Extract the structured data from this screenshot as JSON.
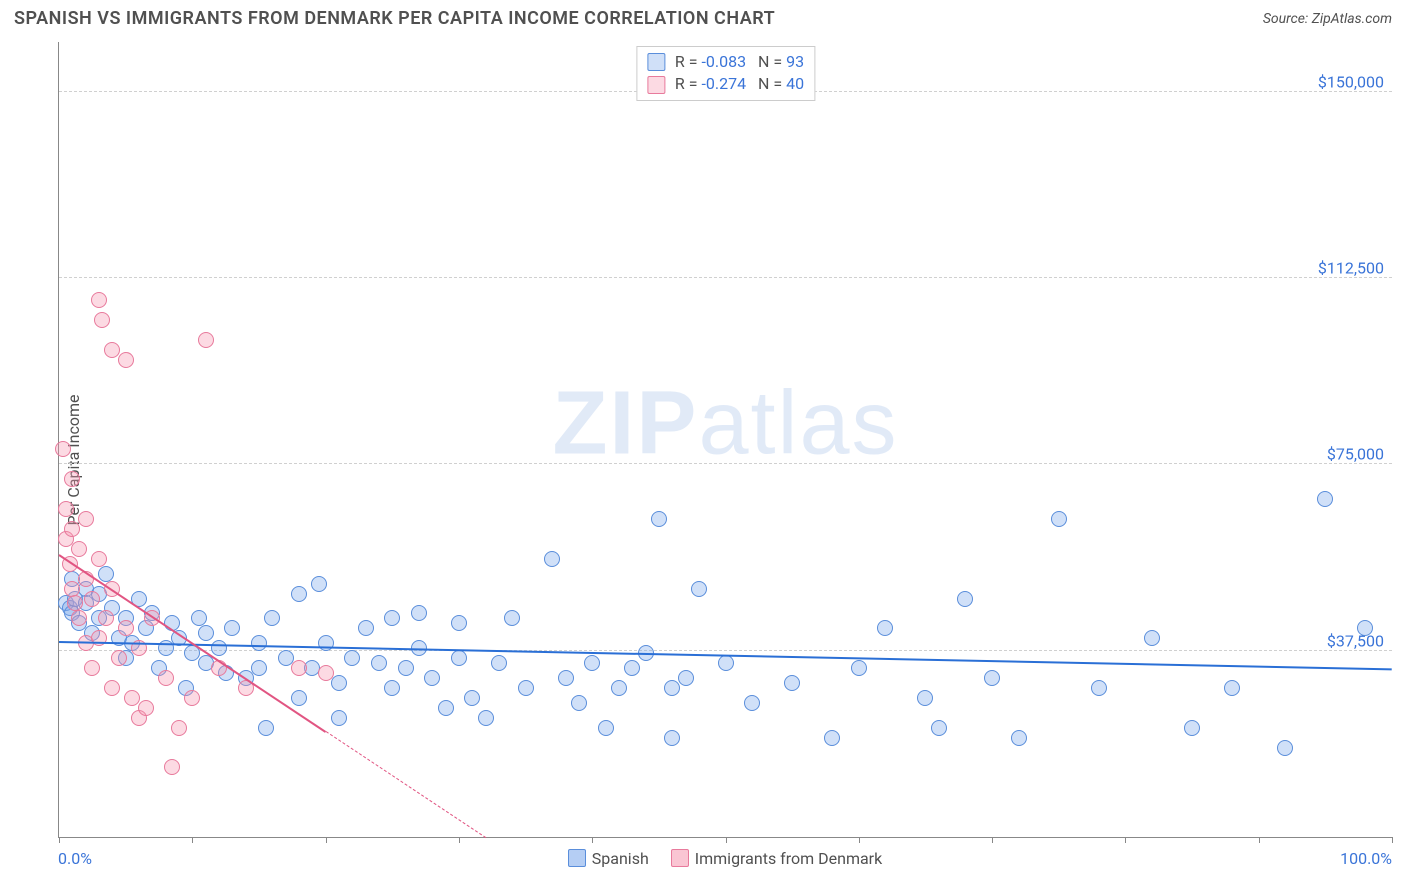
{
  "title": "SPANISH VS IMMIGRANTS FROM DENMARK PER CAPITA INCOME CORRELATION CHART",
  "source": "Source: ZipAtlas.com",
  "watermark_heavy": "ZIP",
  "watermark_light": "atlas",
  "chart": {
    "type": "scatter",
    "ylabel": "Per Capita Income",
    "xlim": [
      0,
      100
    ],
    "ylim": [
      0,
      160000
    ],
    "y_gridlines": [
      37500,
      75000,
      112500,
      150000
    ],
    "y_tick_labels": [
      "$37,500",
      "$75,000",
      "$112,500",
      "$150,000"
    ],
    "x_tick_positions": [
      0,
      10,
      20,
      30,
      40,
      50,
      60,
      70,
      80,
      90,
      100
    ],
    "x_min_label": "0.0%",
    "x_max_label": "100.0%",
    "grid_color": "#d0d0d0",
    "axis_color": "#888888",
    "background_color": "#ffffff",
    "marker_radius": 8,
    "marker_border_width": 1.3,
    "regression_line_width": 2,
    "series": [
      {
        "name": "Spanish",
        "fill": "rgba(120,165,235,0.35)",
        "stroke": "#5a8edb",
        "line_color": "#2a6fd6",
        "R": "-0.083",
        "N": "93",
        "reg_start": [
          0,
          39500
        ],
        "reg_end": [
          100,
          34000
        ],
        "reg_dash_after_x": null,
        "points": [
          [
            0.5,
            47000
          ],
          [
            0.8,
            46000
          ],
          [
            1,
            52000
          ],
          [
            1,
            45000
          ],
          [
            1.2,
            48000
          ],
          [
            1.5,
            43000
          ],
          [
            2,
            50000
          ],
          [
            2,
            47000
          ],
          [
            2.5,
            41000
          ],
          [
            3,
            49000
          ],
          [
            3,
            44000
          ],
          [
            3.5,
            53000
          ],
          [
            4,
            46000
          ],
          [
            4.5,
            40000
          ],
          [
            5,
            44000
          ],
          [
            5,
            36000
          ],
          [
            5.5,
            39000
          ],
          [
            6,
            48000
          ],
          [
            6.5,
            42000
          ],
          [
            7,
            45000
          ],
          [
            7.5,
            34000
          ],
          [
            8,
            38000
          ],
          [
            8.5,
            43000
          ],
          [
            9,
            40000
          ],
          [
            9.5,
            30000
          ],
          [
            10,
            37000
          ],
          [
            10.5,
            44000
          ],
          [
            11,
            35000
          ],
          [
            11,
            41000
          ],
          [
            12,
            38000
          ],
          [
            12.5,
            33000
          ],
          [
            13,
            42000
          ],
          [
            14,
            32000
          ],
          [
            15,
            39000
          ],
          [
            15,
            34000
          ],
          [
            15.5,
            22000
          ],
          [
            16,
            44000
          ],
          [
            17,
            36000
          ],
          [
            18,
            28000
          ],
          [
            18,
            49000
          ],
          [
            19,
            34000
          ],
          [
            19.5,
            51000
          ],
          [
            20,
            39000
          ],
          [
            21,
            31000
          ],
          [
            21,
            24000
          ],
          [
            22,
            36000
          ],
          [
            23,
            42000
          ],
          [
            24,
            35000
          ],
          [
            25,
            30000
          ],
          [
            25,
            44000
          ],
          [
            26,
            34000
          ],
          [
            27,
            38000
          ],
          [
            27,
            45000
          ],
          [
            28,
            32000
          ],
          [
            29,
            26000
          ],
          [
            30,
            36000
          ],
          [
            30,
            43000
          ],
          [
            31,
            28000
          ],
          [
            32,
            24000
          ],
          [
            33,
            35000
          ],
          [
            34,
            44000
          ],
          [
            35,
            30000
          ],
          [
            37,
            56000
          ],
          [
            38,
            32000
          ],
          [
            39,
            27000
          ],
          [
            40,
            35000
          ],
          [
            41,
            22000
          ],
          [
            42,
            30000
          ],
          [
            43,
            34000
          ],
          [
            44,
            37000
          ],
          [
            45,
            64000
          ],
          [
            46,
            30000
          ],
          [
            46,
            20000
          ],
          [
            47,
            32000
          ],
          [
            48,
            50000
          ],
          [
            50,
            35000
          ],
          [
            52,
            27000
          ],
          [
            55,
            31000
          ],
          [
            58,
            20000
          ],
          [
            60,
            34000
          ],
          [
            62,
            42000
          ],
          [
            65,
            28000
          ],
          [
            66,
            22000
          ],
          [
            68,
            48000
          ],
          [
            70,
            32000
          ],
          [
            72,
            20000
          ],
          [
            75,
            64000
          ],
          [
            78,
            30000
          ],
          [
            82,
            40000
          ],
          [
            85,
            22000
          ],
          [
            88,
            30000
          ],
          [
            92,
            18000
          ],
          [
            95,
            68000
          ],
          [
            98,
            42000
          ]
        ]
      },
      {
        "name": "Immigrants from Denmark",
        "fill": "rgba(245,150,175,0.35)",
        "stroke": "#e87a9c",
        "line_color": "#e15582",
        "R": "-0.274",
        "N": "40",
        "reg_start": [
          0,
          57000
        ],
        "reg_end": [
          32,
          0
        ],
        "reg_dash_after_x": 20,
        "points": [
          [
            0.3,
            78000
          ],
          [
            0.5,
            66000
          ],
          [
            0.5,
            60000
          ],
          [
            0.8,
            55000
          ],
          [
            1,
            72000
          ],
          [
            1,
            62000
          ],
          [
            1,
            50000
          ],
          [
            1.2,
            47000
          ],
          [
            1.5,
            58000
          ],
          [
            1.5,
            44000
          ],
          [
            2,
            64000
          ],
          [
            2,
            52000
          ],
          [
            2,
            39000
          ],
          [
            2.5,
            48000
          ],
          [
            2.5,
            34000
          ],
          [
            3,
            108000
          ],
          [
            3.2,
            104000
          ],
          [
            3,
            56000
          ],
          [
            3,
            40000
          ],
          [
            3.5,
            44000
          ],
          [
            4,
            98000
          ],
          [
            4,
            50000
          ],
          [
            4,
            30000
          ],
          [
            4.5,
            36000
          ],
          [
            5,
            96000
          ],
          [
            5,
            42000
          ],
          [
            5.5,
            28000
          ],
          [
            6,
            38000
          ],
          [
            6,
            24000
          ],
          [
            6.5,
            26000
          ],
          [
            7,
            44000
          ],
          [
            8,
            32000
          ],
          [
            8.5,
            14000
          ],
          [
            9,
            22000
          ],
          [
            10,
            28000
          ],
          [
            11,
            100000
          ],
          [
            12,
            34000
          ],
          [
            14,
            30000
          ],
          [
            18,
            34000
          ],
          [
            20,
            33000
          ]
        ]
      }
    ],
    "bottom_legend": [
      {
        "label": "Spanish",
        "fill": "rgba(120,165,235,0.55)",
        "stroke": "#5a8edb"
      },
      {
        "label": "Immigrants from Denmark",
        "fill": "rgba(245,150,175,0.55)",
        "stroke": "#e87a9c"
      }
    ]
  }
}
